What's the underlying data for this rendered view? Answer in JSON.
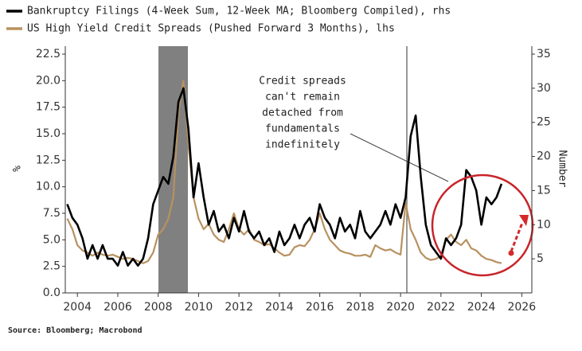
{
  "chart_data": {
    "type": "line",
    "series": [
      {
        "name": "Bankruptcy Filings (4-Week Sum, 12-Week MA; Bloomberg Compiled), rhs",
        "color": "#000000",
        "axis": "y2",
        "values": [
          13,
          11,
          10,
          8,
          5,
          7,
          5,
          7,
          5,
          5,
          4,
          6,
          4,
          5,
          4,
          5,
          8,
          13,
          15,
          17,
          16,
          20,
          28,
          30,
          24,
          14,
          19,
          14,
          10,
          12,
          9,
          10,
          8,
          11,
          9,
          12,
          9,
          8,
          9,
          7,
          8,
          6,
          9,
          7,
          8,
          10,
          8,
          10,
          11,
          9,
          13,
          11,
          10,
          8,
          11,
          9,
          10,
          8,
          12,
          9,
          8,
          9,
          10,
          12,
          10,
          13,
          11,
          14,
          23,
          26,
          17,
          10,
          7,
          6,
          5,
          8,
          7,
          8,
          10,
          18,
          17,
          15,
          10,
          14,
          13,
          14,
          16
        ]
      },
      {
        "name": "US High Yield Credit Spreads (Pushed Forward 3 Months), lhs",
        "color": "#b89160",
        "values": [
          7,
          6,
          4.5,
          4,
          3.8,
          3.5,
          3.8,
          3.6,
          3.5,
          3.6,
          3.4,
          3.2,
          3.3,
          3.2,
          3,
          2.8,
          3,
          3.8,
          5.5,
          6,
          7,
          9,
          17,
          20,
          14,
          9,
          7,
          6,
          6.5,
          5.5,
          5,
          4.8,
          6,
          7.5,
          6,
          5.5,
          6,
          5,
          4.8,
          4.5,
          4.6,
          4.2,
          3.8,
          3.5,
          3.6,
          4.3,
          4.5,
          4.4,
          5,
          6,
          7.5,
          6,
          5,
          4.5,
          4,
          3.8,
          3.7,
          3.5,
          3.5,
          3.6,
          3.4,
          4.5,
          4.2,
          4,
          4.1,
          3.8,
          3.6,
          8.5,
          6,
          5,
          3.8,
          3.3,
          3.1,
          3.2,
          3.5,
          5,
          5.5,
          4.8,
          4.5,
          5,
          4.2,
          4,
          3.5,
          3.2,
          3.1,
          2.9,
          2.8
        ]
      }
    ],
    "x": [
      2003.5,
      2003.75,
      2004,
      2004.25,
      2004.5,
      2004.75,
      2005,
      2005.25,
      2005.5,
      2005.75,
      2006,
      2006.25,
      2006.5,
      2006.75,
      2007,
      2007.25,
      2007.5,
      2007.75,
      2008,
      2008.25,
      2008.5,
      2008.75,
      2009,
      2009.25,
      2009.5,
      2009.75,
      2010,
      2010.25,
      2010.5,
      2010.75,
      2011,
      2011.25,
      2011.5,
      2011.75,
      2012,
      2012.25,
      2012.5,
      2012.75,
      2013,
      2013.25,
      2013.5,
      2013.75,
      2014,
      2014.25,
      2014.5,
      2014.75,
      2015,
      2015.25,
      2015.5,
      2015.75,
      2016,
      2016.25,
      2016.5,
      2016.75,
      2017,
      2017.25,
      2017.5,
      2017.75,
      2018,
      2018.25,
      2018.5,
      2018.75,
      2019,
      2019.25,
      2019.5,
      2019.75,
      2020,
      2020.25,
      2020.5,
      2020.75,
      2021,
      2021.25,
      2021.5,
      2021.75,
      2022,
      2022.25,
      2022.5,
      2022.75,
      2023,
      2023.25,
      2023.5,
      2023.75,
      2024,
      2024.25,
      2024.5,
      2024.75,
      2025
    ],
    "xlim": [
      2003.4,
      2026.5
    ],
    "xticks": [
      2004,
      2006,
      2008,
      2010,
      2012,
      2014,
      2016,
      2018,
      2020,
      2022,
      2024,
      2026
    ],
    "ylim": [
      0,
      22.5
    ],
    "yticks": [
      {
        "value": 0,
        "label": "0.0"
      },
      2.5,
      {
        "value": 5,
        "label": "5.0"
      },
      7.5,
      {
        "value": 10,
        "label": "10.0"
      },
      12.5,
      {
        "value": 15,
        "label": "15.0"
      },
      17.5,
      {
        "value": 20,
        "label": "20.0"
      },
      22.5
    ],
    "y2lim": [
      0,
      35
    ],
    "y2ticks": [
      5,
      10,
      15,
      20,
      25,
      30,
      35
    ],
    "ylabel": "%",
    "y2label": "Number",
    "annotation": [
      "Credit spreads",
      "can't remain",
      "detached from",
      "fundamentals",
      "indefinitely"
    ],
    "source": "Source: Bloomberg; Macrobond"
  }
}
